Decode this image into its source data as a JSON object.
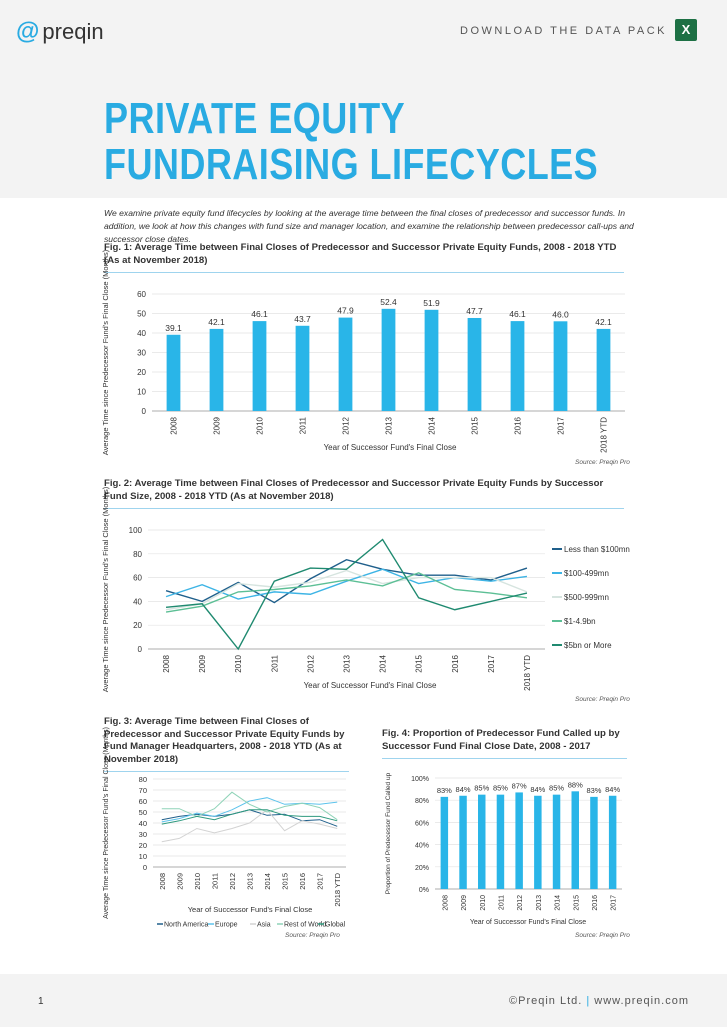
{
  "header": {
    "logo": "preqin",
    "download": "DOWNLOAD THE DATA PACK",
    "excel_icon": "X"
  },
  "title": "PRIVATE EQUITY FUNDRAISING LIFECYCLES",
  "intro": "We examine private equity fund lifecycles by looking at the average time between the final closes of predecessor and successor funds. In addition, we look at how this changes with fund size and manager location, and examine the relationship between predecessor call-ups and successor close dates.",
  "source": "Source: Preqin Pro",
  "footer": {
    "page": "1",
    "copyright": "©Preqin Ltd.",
    "sep": "|",
    "url": "www.preqin.com"
  },
  "chart_data": [
    {
      "id": "fig1",
      "type": "bar",
      "title": "Fig. 1: Average Time between Final Closes of Predecessor and Successor Private Equity Funds, 2008 - 2018 YTD (As at November 2018)",
      "categories": [
        "2008",
        "2009",
        "2010",
        "2011",
        "2012",
        "2013",
        "2014",
        "2015",
        "2016",
        "2017",
        "2018 YTD"
      ],
      "values": [
        39.1,
        42.1,
        46.1,
        43.7,
        47.9,
        52.4,
        51.9,
        47.7,
        46.1,
        46.0,
        42.1
      ],
      "labels": [
        "39.1",
        "42.1",
        "46.1",
        "43.7",
        "47.9",
        "52.4",
        "51.9",
        "47.7",
        "46.1",
        "46.0",
        "42.1"
      ],
      "ylabel": "Average Time since Predecessor Fund's Final Close (Months)",
      "xlabel": "Year of Successor Fund's Final Close",
      "ylim": [
        0,
        60
      ],
      "yticks": [
        0,
        10,
        20,
        30,
        40,
        50,
        60
      ],
      "color": "#29b5e8"
    },
    {
      "id": "fig2",
      "type": "line",
      "title": "Fig. 2: Average Time between Final Closes of Predecessor and Successor Private Equity Funds by Successor Fund Size, 2008 - 2018 YTD (As at November 2018)",
      "categories": [
        "2008",
        "2009",
        "2010",
        "2011",
        "2012",
        "2013",
        "2014",
        "2015",
        "2016",
        "2017",
        "2018 YTD"
      ],
      "ylabel": "Average Time since Predecessor Fund's Final Close (Months)",
      "xlabel": "Year of Successor Fund's Final Close",
      "ylim": [
        0,
        100
      ],
      "yticks": [
        0,
        20,
        40,
        60,
        80,
        100
      ],
      "legend": "right",
      "series": [
        {
          "name": "Less than $100mn",
          "color": "#1f5f8b",
          "values": [
            49,
            40,
            56,
            39,
            59,
            75,
            67,
            62,
            62,
            58,
            68
          ]
        },
        {
          "name": "$100-499mn",
          "color": "#3db4e5",
          "values": [
            44,
            54,
            42,
            48,
            46,
            57,
            67,
            55,
            60,
            57,
            61
          ]
        },
        {
          "name": "$500-999mn",
          "color": "#d6e4df",
          "values": [
            33,
            38,
            55,
            52,
            56,
            66,
            55,
            60,
            60,
            60,
            48
          ]
        },
        {
          "name": "$1-4.9bn",
          "color": "#5cbf95",
          "values": [
            31,
            36,
            48,
            50,
            53,
            58,
            53,
            64,
            50,
            47,
            43
          ]
        },
        {
          "name": "$5bn or More",
          "color": "#1f8a70",
          "values": [
            35,
            38,
            0,
            57,
            68,
            67,
            92,
            43,
            33,
            40,
            47
          ]
        }
      ]
    },
    {
      "id": "fig3",
      "type": "line",
      "title": "Fig. 3: Average Time between Final Closes of Predecessor and Successor Private Equity Funds by Fund Manager Headquarters, 2008 - 2018 YTD (As at November 2018)",
      "categories": [
        "2008",
        "2009",
        "2010",
        "2011",
        "2012",
        "2013",
        "2014",
        "2015",
        "2016",
        "2017",
        "2018 YTD"
      ],
      "ylabel": "Average Time since Predecessor Fund's Final Close (Months)",
      "xlabel": "Year of Successor Fund's Final Close",
      "ylim": [
        0,
        80
      ],
      "yticks": [
        0,
        10,
        20,
        30,
        40,
        50,
        60,
        70,
        80
      ],
      "legend": "bottom",
      "series": [
        {
          "name": "North America",
          "color": "#1f5f8b",
          "values": [
            43,
            46,
            48,
            46,
            48,
            52,
            47,
            48,
            42,
            43,
            37
          ]
        },
        {
          "name": "Europe",
          "color": "#5cc3ec",
          "values": [
            41,
            44,
            49,
            46,
            52,
            60,
            63,
            57,
            58,
            57,
            59
          ]
        },
        {
          "name": "Asia",
          "color": "#d3d3d3",
          "values": [
            23,
            26,
            35,
            31,
            35,
            40,
            52,
            33,
            42,
            39,
            35
          ]
        },
        {
          "name": "Rest of World",
          "color": "#8fd3b8",
          "values": [
            53,
            53,
            46,
            53,
            68,
            57,
            50,
            55,
            58,
            54,
            43
          ]
        },
        {
          "name": "Global",
          "color": "#2f9a7f",
          "values": [
            39,
            42,
            46,
            43,
            48,
            52,
            52,
            47,
            46,
            46,
            42
          ]
        }
      ]
    },
    {
      "id": "fig4",
      "type": "bar",
      "title": "Fig. 4: Proportion of Predecessor Fund Called up by Successor Fund Final Close Date, 2008 - 2017",
      "categories": [
        "2008",
        "2009",
        "2010",
        "2011",
        "2012",
        "2013",
        "2014",
        "2015",
        "2016",
        "2017"
      ],
      "values": [
        83,
        84,
        85,
        85,
        87,
        84,
        85,
        88,
        83,
        84
      ],
      "labels": [
        "83%",
        "84%",
        "85%",
        "85%",
        "87%",
        "84%",
        "85%",
        "88%",
        "83%",
        "84%"
      ],
      "ylabel": "Proportion of Predecessor Fund Called up",
      "xlabel": "Year of Successor Fund's Final Close",
      "ylim": [
        0,
        100
      ],
      "yticks": [
        "0%",
        "20%",
        "40%",
        "60%",
        "80%",
        "100%"
      ],
      "color": "#29b5e8"
    }
  ]
}
